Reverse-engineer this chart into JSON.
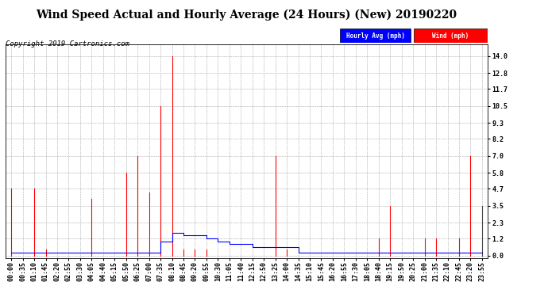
{
  "title": "Wind Speed Actual and Hourly Average (24 Hours) (New) 20190220",
  "copyright": "Copyright 2019 Cartronics.com",
  "yticks": [
    0.0,
    1.2,
    2.3,
    3.5,
    4.7,
    5.8,
    7.0,
    8.2,
    9.3,
    10.5,
    11.7,
    12.8,
    14.0
  ],
  "ylim": [
    -0.2,
    14.8
  ],
  "legend_labels": [
    "Hourly Avg (mph)",
    "Wind (mph)"
  ],
  "background_color": "#ffffff",
  "grid_color": "#aaaaaa",
  "title_fontsize": 10,
  "copyright_fontsize": 6.5,
  "tick_label_fontsize": 6.0,
  "time_labels": [
    "00:00",
    "00:35",
    "01:10",
    "01:45",
    "02:20",
    "02:55",
    "03:30",
    "04:05",
    "04:40",
    "05:15",
    "05:50",
    "06:25",
    "07:00",
    "07:35",
    "08:10",
    "08:45",
    "09:20",
    "09:55",
    "10:30",
    "11:05",
    "11:40",
    "12:15",
    "12:50",
    "13:25",
    "14:00",
    "14:35",
    "15:10",
    "15:45",
    "16:20",
    "16:55",
    "17:30",
    "18:05",
    "18:40",
    "19:15",
    "19:50",
    "20:25",
    "21:00",
    "21:35",
    "22:10",
    "22:45",
    "23:20",
    "23:55"
  ],
  "wind_mph": [
    4.7,
    0.0,
    4.7,
    0.4,
    0.0,
    0.0,
    0.0,
    4.0,
    0.0,
    0.0,
    5.8,
    7.0,
    4.4,
    10.5,
    14.0,
    0.4,
    0.4,
    0.4,
    0.0,
    0.0,
    0.0,
    0.0,
    0.0,
    7.0,
    0.4,
    0.0,
    0.0,
    0.0,
    0.0,
    0.0,
    0.0,
    0.0,
    1.2,
    3.5,
    0.0,
    0.0,
    1.2,
    1.2,
    0.0,
    1.2,
    7.0,
    3.5
  ],
  "wind_colors": [
    "red",
    "red",
    "red",
    "red",
    "red",
    "red",
    "red",
    "red",
    "red",
    "red",
    "red",
    "red",
    "red",
    "red",
    "red",
    "red",
    "red",
    "red",
    "red",
    "red",
    "red",
    "red",
    "red",
    "red",
    "red",
    "red",
    "red",
    "red",
    "red",
    "red",
    "red",
    "red",
    "red",
    "red",
    "red",
    "red",
    "red",
    "red",
    "red",
    "red",
    "red",
    "#444444"
  ],
  "hourly_avg": [
    0.2,
    0.2,
    0.2,
    0.2,
    0.2,
    0.2,
    0.2,
    0.2,
    0.2,
    0.2,
    0.2,
    0.2,
    0.2,
    1.0,
    1.6,
    1.4,
    1.4,
    1.2,
    1.0,
    0.8,
    0.8,
    0.6,
    0.6,
    0.6,
    0.6,
    0.2,
    0.2,
    0.2,
    0.2,
    0.2,
    0.2,
    0.2,
    0.2,
    0.2,
    0.2,
    0.2,
    0.2,
    0.2,
    0.2,
    0.2,
    0.2,
    0.2
  ]
}
